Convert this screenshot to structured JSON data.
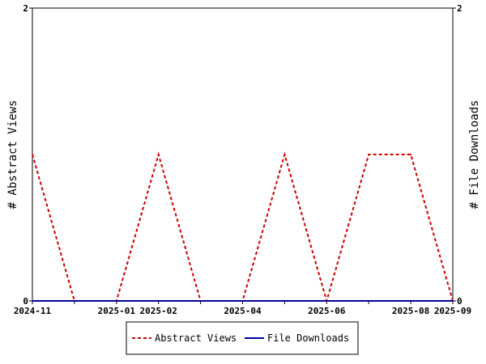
{
  "chart_data": {
    "type": "line",
    "x": [
      "2024-11",
      "2024-12",
      "2025-01",
      "2025-02",
      "2025-03",
      "2025-04",
      "2025-05",
      "2025-06",
      "2025-07",
      "2025-08",
      "2025-09"
    ],
    "x_tick_labels": [
      "2024-11",
      "2025-01",
      "2025-02",
      "2025-04",
      "2025-06",
      "2025-08",
      "2025-09"
    ],
    "series": [
      {
        "name": "Abstract Views",
        "axis": "left",
        "color": "#cc0000",
        "style": "dashed",
        "values": [
          1,
          0,
          0,
          1,
          0,
          0,
          1,
          0,
          1,
          1,
          0
        ]
      },
      {
        "name": "File Downloads",
        "axis": "right",
        "color": "#000099",
        "style": "solid",
        "values": [
          0,
          0,
          0,
          0,
          0,
          0,
          0,
          0,
          0,
          0,
          0
        ]
      }
    ],
    "ylabel_left": "# Abstract Views",
    "ylabel_right": "# File Downloads",
    "ylim_left": [
      0,
      2
    ],
    "ylim_right": [
      0,
      2
    ],
    "y_tick_labels_left": [
      "0",
      "2"
    ],
    "y_tick_labels_right": [
      "0",
      "2"
    ],
    "grid": false,
    "legend_position": "bottom"
  }
}
